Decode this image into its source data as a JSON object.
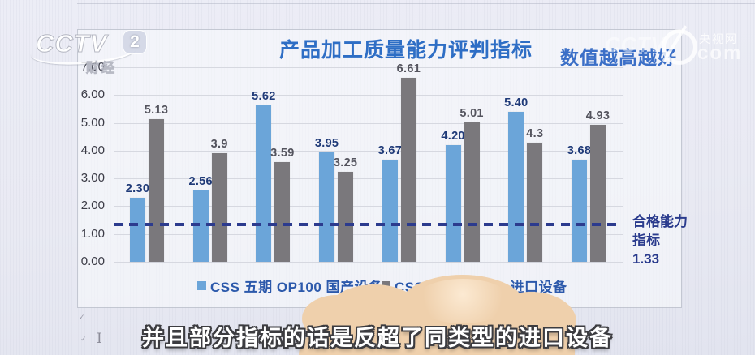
{
  "broadcast": {
    "channel_logo": {
      "text": "CCTV",
      "channel_number": "2",
      "sub_label": "财经"
    },
    "watermark": {
      "brand": "CCTV",
      "site_name": "央视网",
      "domain": "com"
    },
    "caption": "并且部分指标的话是反超了同类型的进口设备"
  },
  "chart_data": {
    "type": "bar",
    "title": "产品加工质量能力评判指标",
    "note": "数值越高越好",
    "xlabel": "",
    "ylabel": "",
    "ylim": [
      0,
      7
    ],
    "grid": true,
    "legend_position": "bottom",
    "ytick_labels": [
      "7.00",
      "6.00",
      "5.00",
      "4.00",
      "3.00",
      "2.00",
      "1.00",
      "0.00"
    ],
    "series": [
      {
        "name": "CSS 五期 OP100 国产设备",
        "color": "#6BA5D9",
        "label_color": "#1f3a78",
        "values": [
          2.3,
          2.56,
          5.62,
          3.95,
          3.67,
          4.2,
          5.4,
          3.68
        ],
        "labels": [
          "2.30",
          "2.56",
          "5.62",
          "3.95",
          "3.67",
          "4.20",
          "5.40",
          "3.68"
        ]
      },
      {
        "name": "CSS 一期 OP100 进口设备",
        "color": "#7A787C",
        "label_color": "#54545e",
        "values": [
          5.13,
          3.9,
          3.59,
          3.25,
          6.61,
          5.01,
          4.3,
          4.93
        ],
        "labels": [
          "5.13",
          "3.9",
          "3.59",
          "3.25",
          "6.61",
          "5.01",
          "4.3",
          "4.93"
        ]
      }
    ],
    "reference_line": {
      "value": 1.33,
      "color": "#2c3b8e",
      "label_lines": [
        "合格能力",
        "指标",
        "1.33"
      ]
    }
  },
  "artifacts": {
    "ibeam_cursor": "I",
    "check_mark": "✓"
  }
}
